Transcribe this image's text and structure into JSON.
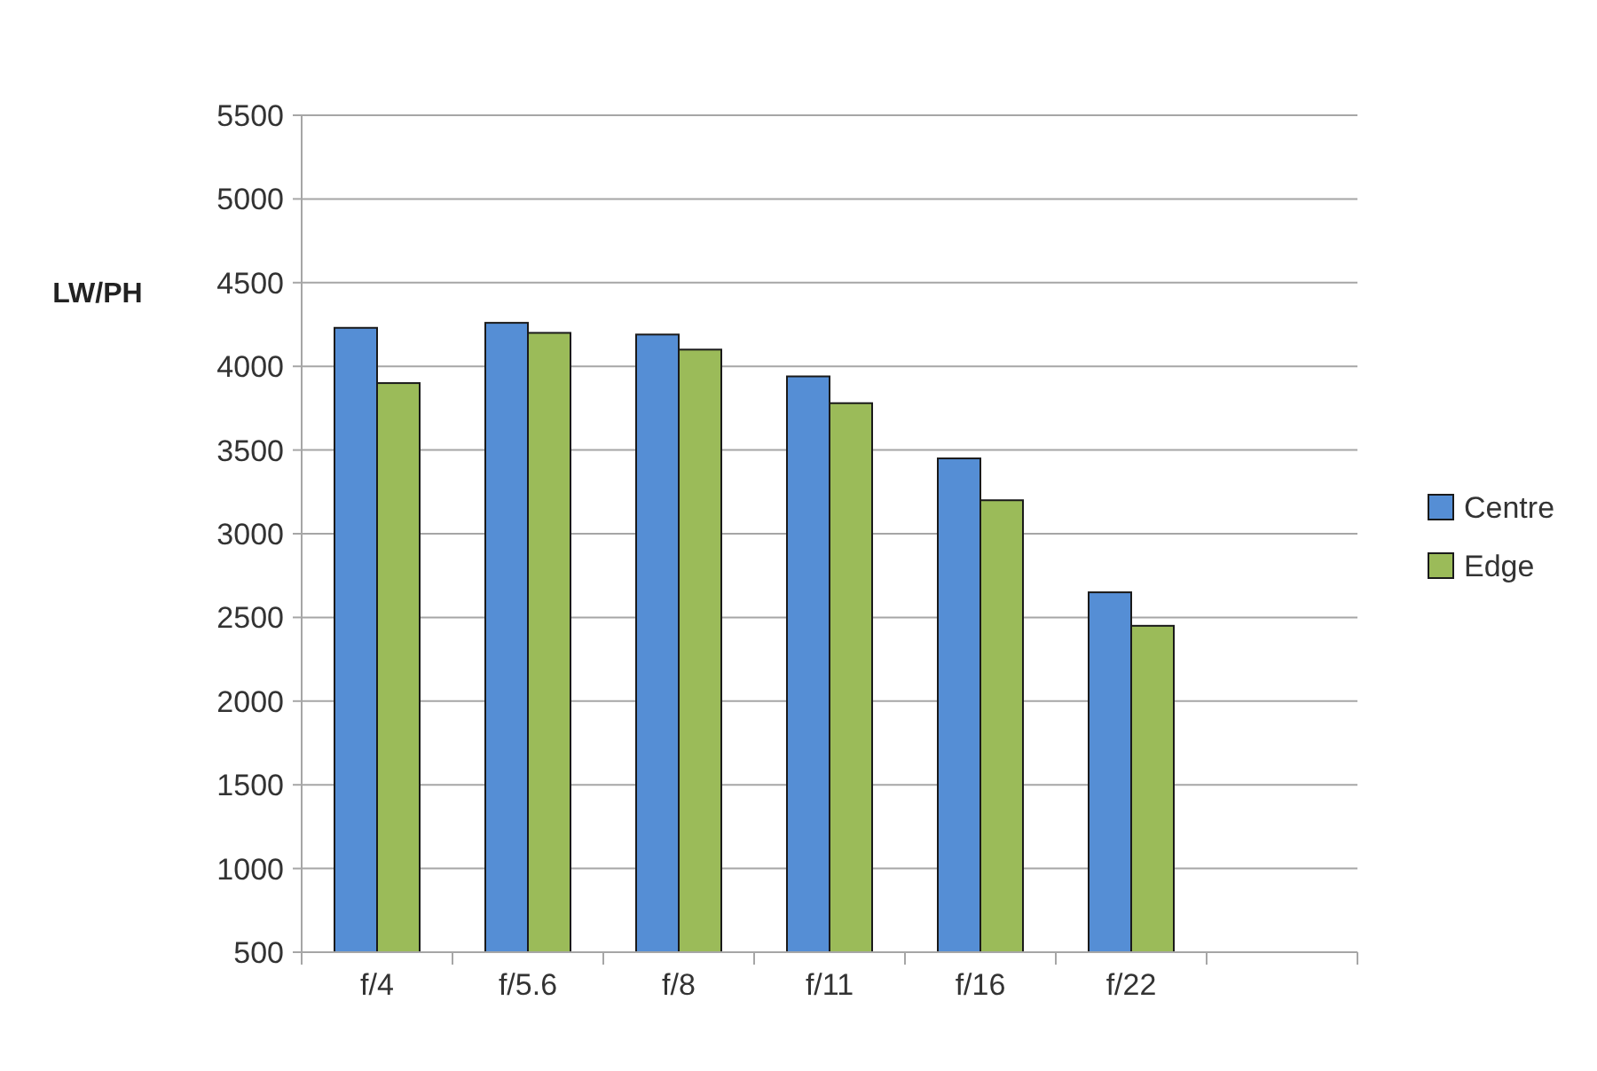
{
  "chart_data": {
    "type": "bar",
    "ylabel": "LW/PH",
    "categories": [
      "f/4",
      "f/5.6",
      "f/8",
      "f/11",
      "f/16",
      "f/22",
      null
    ],
    "series": [
      {
        "name": "Centre",
        "color": "#558ed5",
        "values": [
          4230,
          4260,
          4190,
          3940,
          3450,
          2650,
          null
        ]
      },
      {
        "name": "Edge",
        "color": "#9bbb59",
        "values": [
          3900,
          4200,
          4100,
          3780,
          3200,
          2450,
          null
        ]
      }
    ],
    "ylim": [
      500,
      5500
    ],
    "yticks": [
      500,
      1000,
      1500,
      2000,
      2500,
      3000,
      3500,
      4000,
      4500,
      5000,
      5500
    ],
    "grid": "y",
    "legend": "right"
  }
}
